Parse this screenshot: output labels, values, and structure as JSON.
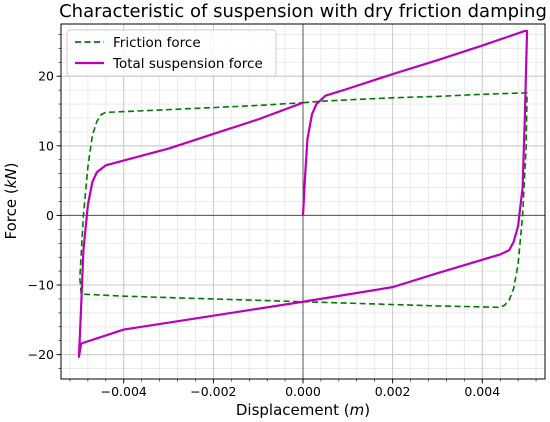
{
  "chart_data": {
    "type": "line",
    "title": "Characteristic of suspension with dry friction damping",
    "xlabel": "Displacement",
    "xlabel_unit": "m",
    "ylabel": "Force",
    "ylabel_unit": "kN",
    "xlim": [
      -0.0054,
      0.0054
    ],
    "ylim": [
      -23.5,
      27.5
    ],
    "x_ticks": [
      -0.004,
      -0.002,
      0.0,
      0.002,
      0.004
    ],
    "x_tick_labels": [
      "−0.004",
      "−0.002",
      "0.000",
      "0.002",
      "0.004"
    ],
    "y_ticks": [
      -20,
      -10,
      0,
      10,
      20
    ],
    "y_tick_labels": [
      "−20",
      "−10",
      "0",
      "10",
      "20"
    ],
    "grid": "major and minor",
    "legend_position": "top-left",
    "series": [
      {
        "name": "Friction force",
        "color": "#007a00",
        "style": "dashed",
        "x": [
          0.0,
          0.0002,
          0.0004,
          0.001,
          0.002,
          0.003,
          0.004,
          0.00495,
          0.005,
          0.00498,
          0.0049,
          0.0048,
          0.0047,
          0.0046,
          0.0045,
          0.0044,
          0.003,
          0.002,
          0.0,
          -0.002,
          -0.004,
          -0.00495,
          -0.00498,
          -0.0049,
          -0.0048,
          -0.0047,
          -0.0046,
          -0.0045,
          -0.0044,
          -0.003,
          -0.002,
          -0.001,
          0.0
        ],
        "y": [
          16.2,
          16.3,
          16.4,
          16.6,
          16.9,
          17.1,
          17.4,
          17.6,
          17.6,
          10.0,
          0.0,
          -7.0,
          -10.5,
          -12.2,
          -12.9,
          -13.2,
          -13.0,
          -12.8,
          -12.4,
          -12.0,
          -11.6,
          -11.3,
          -9.0,
          0.0,
          7.0,
          11.5,
          13.5,
          14.5,
          14.8,
          15.2,
          15.5,
          15.8,
          16.2
        ]
      },
      {
        "name": "Total suspension force",
        "color": "#bb00bb",
        "style": "solid",
        "x": [
          0.0,
          5e-05,
          0.0001,
          0.0002,
          0.0003,
          0.0005,
          0.001,
          0.002,
          0.003,
          0.004,
          0.00495,
          0.005,
          0.00495,
          0.0049,
          0.0048,
          0.0047,
          0.0046,
          0.0044,
          0.003,
          0.002,
          0.0,
          -0.002,
          -0.004,
          -0.00495,
          -0.005,
          -0.00495,
          -0.0049,
          -0.0048,
          -0.0047,
          -0.0046,
          -0.0044,
          -0.003,
          -0.002,
          -0.001,
          0.0
        ],
        "y": [
          0.0,
          6.0,
          11.0,
          14.5,
          16.0,
          17.2,
          18.2,
          20.3,
          22.3,
          24.4,
          26.5,
          26.5,
          14.0,
          4.0,
          -1.5,
          -3.8,
          -5.0,
          -5.6,
          -8.3,
          -10.3,
          -12.4,
          -14.4,
          -16.4,
          -18.4,
          -20.3,
          -13.0,
          -5.0,
          1.5,
          4.8,
          6.2,
          7.2,
          9.6,
          11.7,
          13.8,
          16.2
        ]
      }
    ]
  }
}
